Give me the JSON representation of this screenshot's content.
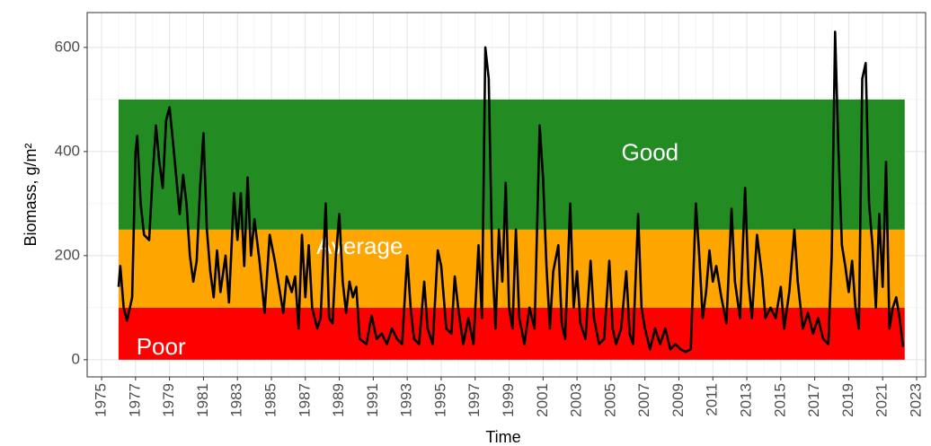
{
  "chart_data": {
    "type": "line",
    "x_label": "Time",
    "y_label": "Biomass, g/m²",
    "xlim": [
      1974.15,
      2023.53
    ],
    "ylim": [
      -33,
      667
    ],
    "xticks": [
      1975,
      1977,
      1979,
      1981,
      1983,
      1985,
      1987,
      1989,
      1991,
      1993,
      1995,
      1997,
      1999,
      2001,
      2003,
      2005,
      2007,
      2009,
      2011,
      2013,
      2015,
      2017,
      2019,
      2021,
      2023
    ],
    "yticks": [
      0,
      200,
      400,
      600
    ],
    "grid": true,
    "bands": {
      "x_range": [
        1976,
        2022.3
      ],
      "items": [
        {
          "label": "Poor",
          "from": 0,
          "to": 100,
          "color": "#ff0000",
          "label_x": 1978.5,
          "label_y": 22
        },
        {
          "label": "Average",
          "from": 100,
          "to": 250,
          "color": "#ffa500",
          "label_x": 1990.2,
          "label_y": 215
        },
        {
          "label": "Good",
          "from": 250,
          "to": 500,
          "color": "#228b22",
          "label_x": 2007.3,
          "label_y": 395
        }
      ]
    },
    "series": [
      {
        "name": "Biomass",
        "color": "#000000",
        "x": [
          1976.0,
          1976.1,
          1976.3,
          1976.5,
          1976.8,
          1977.0,
          1977.1,
          1977.3,
          1977.5,
          1977.8,
          1978.0,
          1978.2,
          1978.4,
          1978.6,
          1978.8,
          1979.0,
          1979.2,
          1979.4,
          1979.6,
          1979.8,
          1980.0,
          1980.2,
          1980.4,
          1980.6,
          1980.8,
          1981.0,
          1981.2,
          1981.4,
          1981.6,
          1981.8,
          1982.0,
          1982.3,
          1982.5,
          1982.8,
          1983.0,
          1983.2,
          1983.4,
          1983.6,
          1983.8,
          1984.0,
          1984.3,
          1984.6,
          1984.9,
          1985.2,
          1985.5,
          1985.7,
          1985.9,
          1986.2,
          1986.4,
          1986.6,
          1986.8,
          1987.0,
          1987.2,
          1987.4,
          1987.7,
          1987.9,
          1988.2,
          1988.4,
          1988.6,
          1988.8,
          1989.0,
          1989.2,
          1989.4,
          1989.6,
          1989.8,
          1990.0,
          1990.2,
          1990.6,
          1990.9,
          1991.2,
          1991.5,
          1991.8,
          1992.1,
          1992.4,
          1992.7,
          1993.0,
          1993.2,
          1993.4,
          1993.7,
          1994.0,
          1994.2,
          1994.5,
          1994.8,
          1995.0,
          1995.3,
          1995.6,
          1995.8,
          1996.0,
          1996.3,
          1996.6,
          1996.9,
          1997.2,
          1997.4,
          1997.6,
          1997.8,
          1998.0,
          1998.2,
          1998.4,
          1998.6,
          1998.8,
          1999.0,
          1999.2,
          1999.4,
          1999.6,
          1999.9,
          2000.2,
          2000.5,
          2000.8,
          2001.0,
          2001.2,
          2001.4,
          2001.6,
          2001.9,
          2002.1,
          2002.3,
          2002.6,
          2002.8,
          2003.0,
          2003.2,
          2003.5,
          2003.8,
          2004.0,
          2004.3,
          2004.6,
          2004.9,
          2005.1,
          2005.3,
          2005.6,
          2005.9,
          2006.1,
          2006.3,
          2006.6,
          2006.8,
          2007.0,
          2007.3,
          2007.6,
          2007.9,
          2008.2,
          2008.5,
          2008.8,
          2009.1,
          2009.4,
          2009.7,
          2010.0,
          2010.2,
          2010.4,
          2010.6,
          2010.8,
          2011.0,
          2011.2,
          2011.5,
          2011.8,
          2012.1,
          2012.3,
          2012.6,
          2012.9,
          2013.1,
          2013.3,
          2013.6,
          2013.9,
          2014.1,
          2014.4,
          2014.7,
          2015.0,
          2015.2,
          2015.5,
          2015.8,
          2016.0,
          2016.3,
          2016.6,
          2016.9,
          2017.2,
          2017.5,
          2017.8,
          2018.0,
          2018.2,
          2018.4,
          2018.6,
          2018.8,
          2019.0,
          2019.2,
          2019.4,
          2019.6,
          2019.8,
          2020.0,
          2020.2,
          2020.4,
          2020.6,
          2020.8,
          2021.0,
          2021.2,
          2021.4,
          2021.6,
          2021.8,
          2022.0,
          2022.2
        ],
        "values": [
          140,
          180,
          100,
          75,
          120,
          400,
          430,
          300,
          240,
          230,
          350,
          450,
          380,
          330,
          460,
          485,
          420,
          350,
          280,
          355,
          300,
          200,
          150,
          190,
          330,
          435,
          250,
          170,
          120,
          210,
          130,
          200,
          110,
          320,
          230,
          320,
          180,
          350,
          200,
          270,
          190,
          90,
          240,
          190,
          130,
          90,
          160,
          130,
          160,
          60,
          240,
          120,
          220,
          100,
          60,
          80,
          300,
          80,
          70,
          200,
          280,
          150,
          90,
          150,
          120,
          140,
          40,
          30,
          85,
          40,
          50,
          30,
          60,
          40,
          30,
          200,
          100,
          40,
          30,
          150,
          60,
          30,
          210,
          180,
          60,
          50,
          160,
          100,
          30,
          80,
          30,
          220,
          80,
          600,
          540,
          200,
          60,
          250,
          150,
          340,
          100,
          60,
          250,
          80,
          30,
          100,
          60,
          450,
          350,
          180,
          60,
          170,
          220,
          70,
          40,
          300,
          100,
          170,
          70,
          40,
          190,
          80,
          30,
          40,
          190,
          60,
          30,
          60,
          170,
          50,
          30,
          280,
          100,
          60,
          20,
          60,
          30,
          60,
          20,
          30,
          20,
          15,
          20,
          300,
          200,
          80,
          130,
          210,
          150,
          180,
          120,
          70,
          290,
          150,
          80,
          330,
          150,
          80,
          240,
          160,
          80,
          100,
          80,
          140,
          60,
          130,
          250,
          150,
          60,
          90,
          50,
          80,
          40,
          30,
          200,
          630,
          400,
          220,
          180,
          130,
          190,
          100,
          60,
          540,
          570,
          300,
          220,
          100,
          280,
          140,
          380,
          60,
          100,
          120,
          80,
          25
        ]
      }
    ]
  }
}
